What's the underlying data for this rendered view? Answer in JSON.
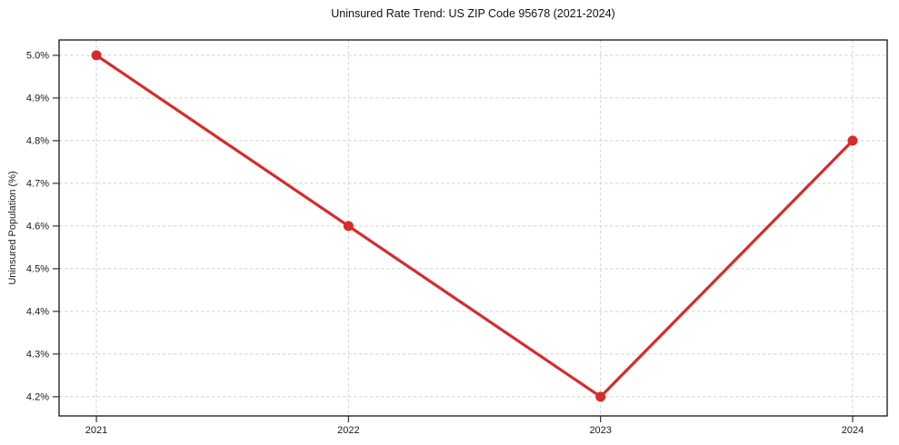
{
  "chart_data": {
    "type": "line",
    "title": "Uninsured Rate Trend: US ZIP Code 95678 (2021-2024)",
    "xlabel": "",
    "ylabel": "Uninsured Population (%)",
    "x": [
      2021,
      2022,
      2023,
      2024
    ],
    "series": [
      {
        "values": [
          5.0,
          4.6,
          4.2,
          4.8
        ]
      }
    ],
    "x_ticks": [
      {
        "value": 2021,
        "label": "2021"
      },
      {
        "value": 2022,
        "label": "2022"
      },
      {
        "value": 2023,
        "label": "2023"
      },
      {
        "value": 2024,
        "label": "2024"
      }
    ],
    "y_ticks": [
      {
        "value": 4.2,
        "label": "4.2%"
      },
      {
        "value": 4.3,
        "label": "4.3%"
      },
      {
        "value": 4.4,
        "label": "4.4%"
      },
      {
        "value": 4.5,
        "label": "4.5%"
      },
      {
        "value": 4.6,
        "label": "4.6%"
      },
      {
        "value": 4.7,
        "label": "4.7%"
      },
      {
        "value": 4.8,
        "label": "4.8%"
      },
      {
        "value": 4.9,
        "label": "4.9%"
      },
      {
        "value": 5.0,
        "label": "5.0%"
      }
    ],
    "xlim": [
      2020.852,
      2024.137
    ],
    "ylim": [
      4.155,
      5.036
    ],
    "grid": true,
    "legend": "none",
    "line_color": "#d62c2c",
    "marker_color": "#d62c2c",
    "grid_color": "#d3d3d3",
    "frame_color": "#000000",
    "marker": "circle"
  }
}
